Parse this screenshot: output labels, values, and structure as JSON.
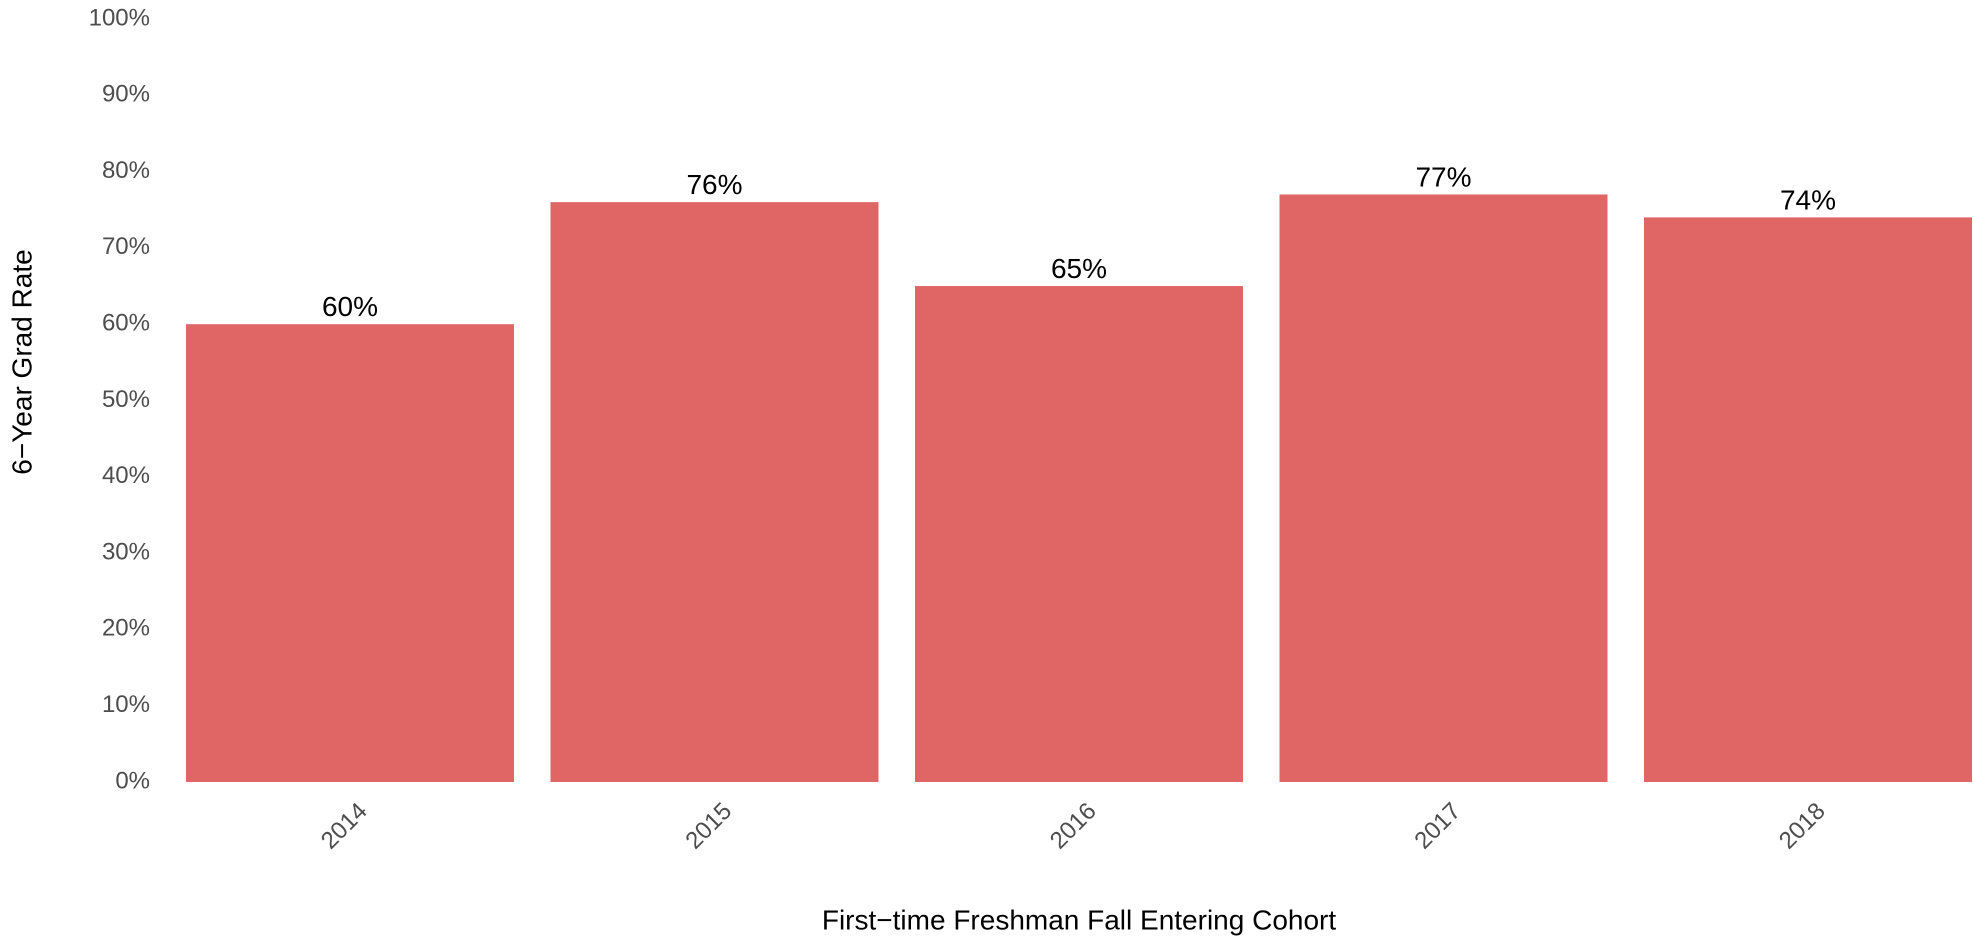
{
  "chart_data": {
    "type": "bar",
    "x_label": "First−time Freshman Fall Entering Cohort",
    "y_label": "6−Year Grad Rate",
    "categories": [
      "2014",
      "2015",
      "2016",
      "2017",
      "2018"
    ],
    "values": [
      60,
      76,
      65,
      77,
      74
    ],
    "value_labels": [
      "60%",
      "76%",
      "65%",
      "77%",
      "74%"
    ],
    "color": "#e06666",
    "ylim": [
      0,
      100
    ],
    "yticks": [
      {
        "value": 0,
        "label": "0%"
      },
      {
        "value": 10,
        "label": "10%"
      },
      {
        "value": 20,
        "label": "20%"
      },
      {
        "value": 30,
        "label": "30%"
      },
      {
        "value": 40,
        "label": "40%"
      },
      {
        "value": 50,
        "label": "50%"
      },
      {
        "value": 60,
        "label": "60%"
      },
      {
        "value": 70,
        "label": "70%"
      },
      {
        "value": 80,
        "label": "80%"
      },
      {
        "value": 90,
        "label": "90%"
      },
      {
        "value": 100,
        "label": "100%"
      }
    ]
  }
}
